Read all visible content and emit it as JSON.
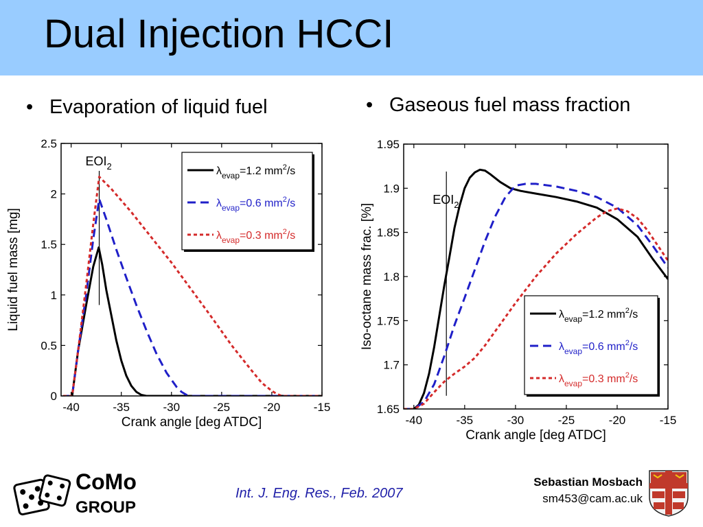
{
  "slide": {
    "title": "Dual Injection HCCI",
    "bullets": [
      "Evaporation of liquid fuel",
      "Gaseous fuel mass fraction"
    ],
    "citation": "Int. J. Eng. Res., Feb. 2007",
    "author": "Sebastian Mosbach",
    "email": "sm453@cam.ac.uk",
    "logo": {
      "line1": "CoMo",
      "line2": "GROUP",
      "icon": "dice-icon"
    },
    "crest_icon": "university-crest-icon"
  },
  "colors": {
    "title_bar": "#99ccff",
    "series_black": "#000000",
    "series_blue": "#1f1fc8",
    "series_red": "#d42a2a",
    "citation": "#1f1fa8"
  },
  "chart_data": [
    {
      "type": "line",
      "xlabel": "Crank angle [deg ATDC]",
      "ylabel": "Liquid fuel mass [mg]",
      "xlim": [
        -41,
        -15
      ],
      "ylim": [
        0,
        2.5
      ],
      "xticks": [
        -40,
        -35,
        -30,
        -25,
        -20,
        -15
      ],
      "yticks": [
        0,
        0.5,
        1,
        1.5,
        2,
        2.5
      ],
      "ytick_labels": [
        "0",
        "0.5",
        "1",
        "1.5",
        "2",
        "2.5"
      ],
      "annotation": {
        "text": "EOI",
        "subscript": "2",
        "x": -37.2
      },
      "legend": {
        "position": "top-right",
        "entries": [
          {
            "sym": "λ",
            "sub": "evap",
            "val": "=1.2 mm",
            "sup": "2",
            "unit": "/s"
          },
          {
            "sym": "λ",
            "sub": "evap",
            "val": "=0.6 mm",
            "sup": "2",
            "unit": "/s"
          },
          {
            "sym": "λ",
            "sub": "evap",
            "val": "=0.3 mm",
            "sup": "2",
            "unit": "/s"
          }
        ]
      },
      "series": [
        {
          "style": "solid",
          "x": [
            -40.8,
            -39.9,
            -39.3,
            -38.5,
            -37.8,
            -37.25,
            -36.9,
            -36.5,
            -36.0,
            -35.5,
            -35.0,
            -34.5,
            -34.0,
            -33.5,
            -33.0,
            -32.5,
            -15
          ],
          "y": [
            0,
            0,
            0.45,
            0.9,
            1.28,
            1.47,
            1.3,
            1.05,
            0.8,
            0.55,
            0.35,
            0.2,
            0.1,
            0.04,
            0.01,
            0,
            0
          ]
        },
        {
          "style": "dashed",
          "x": [
            -40.8,
            -39.9,
            -39.3,
            -38.5,
            -37.8,
            -37.2,
            -36.5,
            -35.5,
            -34.5,
            -33.5,
            -32.5,
            -31.5,
            -30.5,
            -29.5,
            -29.0,
            -28.5,
            -28.0,
            -15
          ],
          "y": [
            0,
            0,
            0.45,
            1.0,
            1.55,
            1.95,
            1.75,
            1.45,
            1.17,
            0.9,
            0.65,
            0.42,
            0.23,
            0.09,
            0.04,
            0.01,
            0,
            0
          ]
        },
        {
          "style": "dotted",
          "x": [
            -40.8,
            -39.9,
            -39.3,
            -38.5,
            -37.8,
            -37.2,
            -36.0,
            -34.0,
            -32.0,
            -30.0,
            -28.0,
            -26.0,
            -24.0,
            -22.0,
            -21.0,
            -20.0,
            -19.5,
            -19.0,
            -15
          ],
          "y": [
            0,
            0,
            0.45,
            1.1,
            1.7,
            2.17,
            2.05,
            1.82,
            1.57,
            1.32,
            1.05,
            0.78,
            0.5,
            0.25,
            0.13,
            0.05,
            0.02,
            0,
            0
          ]
        }
      ]
    },
    {
      "type": "line",
      "xlabel": "Crank angle [deg ATDC]",
      "ylabel": "Iso-octane mass frac. [%]",
      "xlim": [
        -41,
        -15
      ],
      "ylim": [
        1.65,
        1.95
      ],
      "xticks": [
        -40,
        -35,
        -30,
        -25,
        -20,
        -15
      ],
      "yticks": [
        1.65,
        1.7,
        1.75,
        1.8,
        1.85,
        1.9,
        1.95
      ],
      "ytick_labels": [
        "1.65",
        "1.7",
        "1.75",
        "1.8",
        "1.85",
        "1.9",
        "1.95"
      ],
      "annotation": {
        "text": "EOI",
        "subscript": "2",
        "x": -36.8
      },
      "legend": {
        "position": "bottom-right",
        "entries": [
          {
            "sym": "λ",
            "sub": "evap",
            "val": "=1.2 mm",
            "sup": "2",
            "unit": "/s"
          },
          {
            "sym": "λ",
            "sub": "evap",
            "val": "=0.6 mm",
            "sup": "2",
            "unit": "/s"
          },
          {
            "sym": "λ",
            "sub": "evap",
            "val": "=0.3 mm",
            "sup": "2",
            "unit": "/s"
          }
        ]
      },
      "series": [
        {
          "style": "solid",
          "x": [
            -41,
            -40.0,
            -39.5,
            -39.0,
            -38.5,
            -38.0,
            -37.5,
            -37.0,
            -36.5,
            -36.0,
            -35.5,
            -35.0,
            -34.5,
            -34.0,
            -33.5,
            -33.0,
            -32.5,
            -31.5,
            -30.5,
            -29.5,
            -28.0,
            -26.0,
            -24.0,
            -22.0,
            -20.0,
            -18.0,
            -16.5,
            -15.0
          ],
          "y": [
            1.65,
            1.65,
            1.655,
            1.668,
            1.69,
            1.72,
            1.755,
            1.79,
            1.822,
            1.855,
            1.88,
            1.9,
            1.912,
            1.918,
            1.921,
            1.92,
            1.916,
            1.907,
            1.9,
            1.897,
            1.894,
            1.89,
            1.885,
            1.878,
            1.865,
            1.845,
            1.82,
            1.797
          ]
        },
        {
          "style": "dashed",
          "x": [
            -41,
            -40.0,
            -39.0,
            -38.0,
            -37.0,
            -36.0,
            -35.0,
            -34.0,
            -33.0,
            -32.0,
            -31.0,
            -30.0,
            -29.0,
            -28.0,
            -26.0,
            -24.0,
            -22.0,
            -20.0,
            -18.0,
            -16.5,
            -15.0
          ],
          "y": [
            1.65,
            1.65,
            1.658,
            1.678,
            1.71,
            1.745,
            1.776,
            1.808,
            1.84,
            1.868,
            1.89,
            1.903,
            1.905,
            1.905,
            1.902,
            1.897,
            1.89,
            1.878,
            1.858,
            1.835,
            1.81
          ]
        },
        {
          "style": "dotted",
          "x": [
            -41,
            -40.0,
            -39.0,
            -38.0,
            -37.0,
            -36.0,
            -35.0,
            -34.0,
            -33.0,
            -32.0,
            -30.0,
            -28.0,
            -26.0,
            -24.0,
            -22.0,
            -21.0,
            -20.0,
            -19.0,
            -18.0,
            -17.0,
            -16.0,
            -15.0
          ],
          "y": [
            1.65,
            1.65,
            1.656,
            1.669,
            1.681,
            1.69,
            1.698,
            1.708,
            1.722,
            1.738,
            1.77,
            1.8,
            1.826,
            1.848,
            1.867,
            1.874,
            1.877,
            1.874,
            1.866,
            1.852,
            1.835,
            1.818
          ]
        }
      ]
    }
  ]
}
